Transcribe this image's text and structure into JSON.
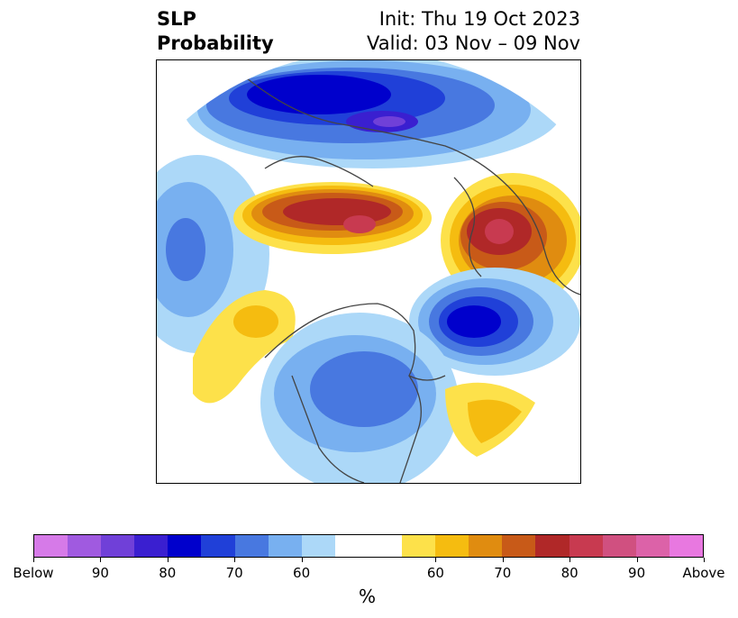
{
  "header": {
    "title_line1": "SLP",
    "title_line2": "Probability",
    "init": "Init: Thu 19 Oct 2023",
    "valid": "Valid: 03 Nov – 09 Nov"
  },
  "colorbar": {
    "colors": [
      "#d67ae8",
      "#a05ae0",
      "#7040d8",
      "#3a1fd0",
      "#0000cc",
      "#2040d8",
      "#4878e0",
      "#78b0f0",
      "#acd8f8",
      "#ffffff",
      "#ffffff",
      "#fde14a",
      "#f5bc10",
      "#e08c10",
      "#c85a18",
      "#b02828",
      "#c83a50",
      "#d05080",
      "#dc62a8",
      "#e878e0"
    ],
    "tick_labels": [
      "Below",
      "90",
      "80",
      "70",
      "60",
      "60",
      "70",
      "80",
      "90",
      "Above"
    ],
    "unit": "%"
  },
  "map": {
    "projection": "north polar stereographic",
    "regions": [
      {
        "name": "above-normal anomaly over Siberia/Arctic",
        "category": "above",
        "max_percent": 85
      },
      {
        "name": "above-normal anomaly over Scandinavia/Russia",
        "category": "above",
        "max_percent": 85
      },
      {
        "name": "below-normal anomaly over Eurasia north",
        "category": "below",
        "max_percent": 85
      },
      {
        "name": "below-normal anomaly over North Atlantic",
        "category": "below",
        "max_percent": 80
      },
      {
        "name": "below-normal anomaly over North America",
        "category": "below",
        "max_percent": 70
      },
      {
        "name": "below-normal anomaly over North Pacific",
        "category": "below",
        "max_percent": 70
      },
      {
        "name": "above-normal anomaly over NE Pacific",
        "category": "above",
        "max_percent": 65
      },
      {
        "name": "above-normal anomaly over subtropical Atlantic",
        "category": "above",
        "max_percent": 65
      }
    ]
  }
}
